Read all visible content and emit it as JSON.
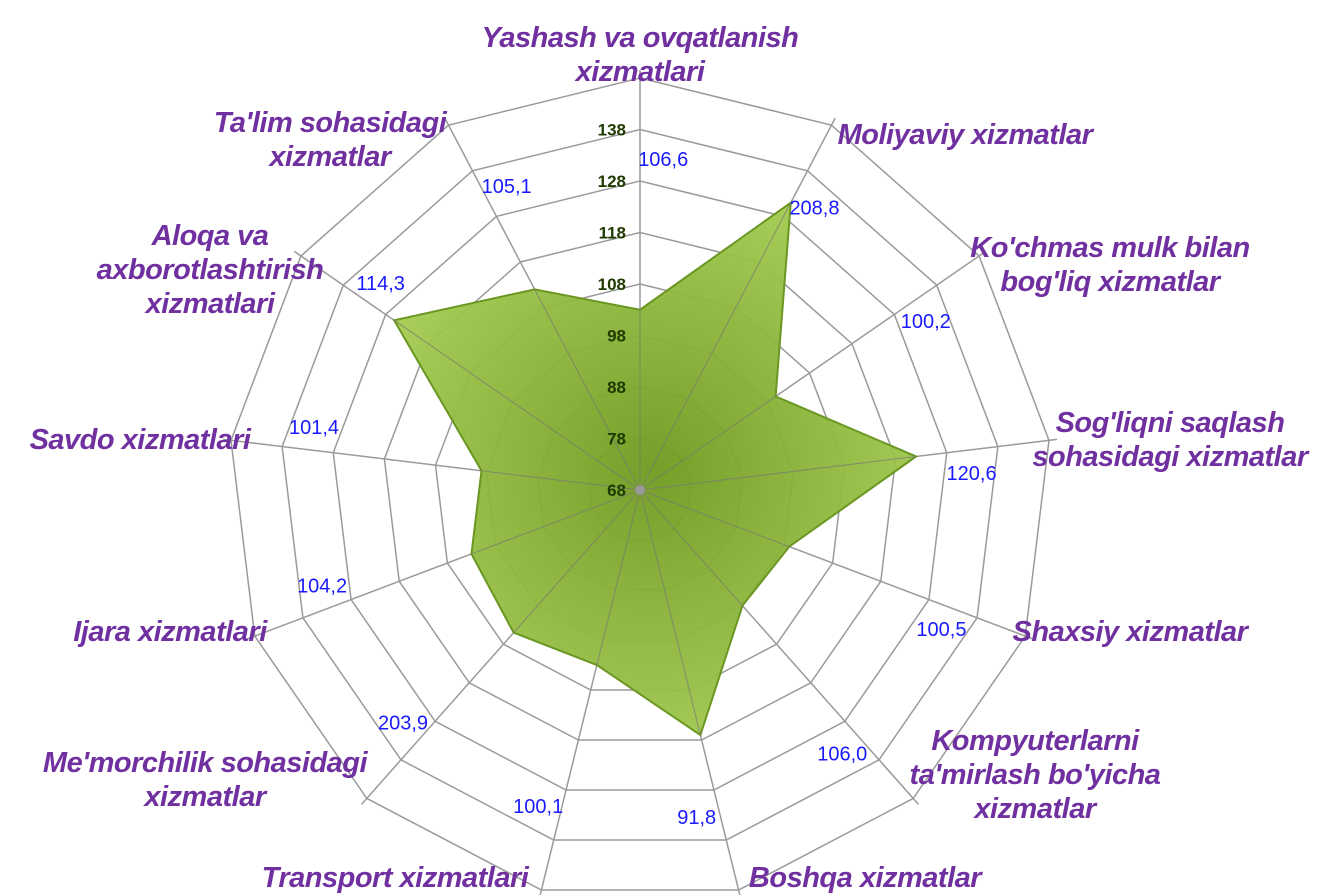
{
  "chart_data": {
    "type": "radar",
    "categories": [
      "Yashash va ovqatlanish xizmatlari",
      "Moliyaviy xizmatlar",
      "Ko'chmas mulk bilan bog'liq xizmatlar",
      "Sog'liqni saqlash sohasidagi xizmatlar",
      "Shaxsiy xizmatlar",
      "Kompyuterlarni ta'mirlash bo'yicha xizmatlar",
      "Boshqa xizmatlar",
      "Transport xizmatlari",
      "Me'morchilik sohasidagi xizmatlar",
      "Ijara xizmatlari",
      "Savdo xizmatlari",
      "Aloqa va axborotlashtirish xizmatlari",
      "Ta'lim sohasidagi xizmatlar"
    ],
    "values": [
      103,
      131,
      100,
      122,
      99,
      98,
      117,
      103,
      105,
      103,
      99,
      126,
      112
    ],
    "annotations": [
      "106,6",
      "208,8",
      "100,2",
      "120,6",
      "100,5",
      "106,0",
      "91,8",
      "100,1",
      "203,9",
      "104,2",
      "101,4",
      "114,3",
      "105,1"
    ],
    "color": "#8dba3a",
    "ylim": [
      68,
      148
    ],
    "yticks": [
      68,
      78,
      88,
      98,
      108,
      118,
      128,
      138
    ],
    "grid": true
  }
}
